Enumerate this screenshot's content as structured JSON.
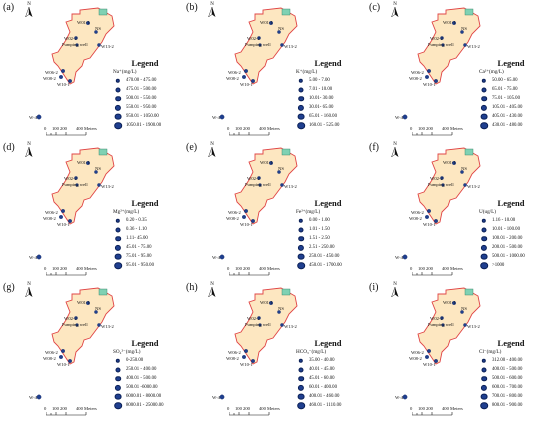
{
  "map_labels": {
    "w01": "W01-1",
    "ns": "NS",
    "w02": "W02-2",
    "pumping": "Pumping well",
    "w13": "W13-2",
    "w06": "W06-2",
    "w08": "W08-2",
    "w10": "W10-1",
    "w4": "W-4"
  },
  "north_label": "N",
  "legend_title": "Legend",
  "scale": {
    "t0": "0",
    "t1": "100 200",
    "t2": "400 Meters"
  },
  "colors": {
    "site_fill": "#fde7c1",
    "site_border": "#e04545",
    "point": "#1f3f8f",
    "ns_fill": "#7fd1b3"
  },
  "panels": [
    {
      "letter": "(a)",
      "param": "Na⁺(mg/L)",
      "items": [
        "470.00 - 475.00",
        "475.01 - 500.00",
        "500.01 - 550.00",
        "550.01 - 950.00",
        "950.01 - 1050.00",
        "1050.01 - 1900.00"
      ]
    },
    {
      "letter": "(b)",
      "param": "K⁺(mg/L)",
      "items": [
        "5.00 - 7.00",
        "7.01 - 10.00",
        "10.01- 30.00",
        "30.01- 65.00",
        "65.01 - 160.00",
        "160.01 - 525.00"
      ]
    },
    {
      "letter": "(c)",
      "param": "Ca²⁺(mg/L)",
      "items": [
        "50.00 - 65.00",
        "65.01 - 75.00",
        "75.01 - 105.00",
        "105.01 - 405.00",
        "405.01 - 430.00",
        "430.01 - 480.00"
      ]
    },
    {
      "letter": "(d)",
      "param": "Mg²⁺(mg/L)",
      "items": [
        "0.20 - 0.35",
        "0.36 - 1.10",
        "1.11- 45.00",
        "45.01 - 75.00",
        "75.01 - 95.00",
        "95.01 - 950.00"
      ]
    },
    {
      "letter": "(e)",
      "param": "Fe²⁺(mg/L)",
      "items": [
        "0.00 - 1.00",
        "1.01 - 1.50",
        "1.51 - 2.50",
        "2.51 - 250.00",
        "250.01 - 450.00",
        "450.01 - 1700.00"
      ]
    },
    {
      "letter": "(f)",
      "param": "U(ug/L)",
      "items": [
        "1.16 - 10.00",
        "10.01 - 100.00",
        "100.01 - 200.00",
        "200.01 - 500.00",
        "500.01 - 1000.00",
        ">1000"
      ]
    },
    {
      "letter": "(g)",
      "param": "SO₄²⁻(mg/L)",
      "items": [
        "0-250.00",
        "250.01 - 400.00",
        "400.01 - 500.00",
        "500.01 -6000.00",
        "6000.01 - 8000.00",
        "8000.01 - 25000.00"
      ]
    },
    {
      "letter": "(h)",
      "param": "HCO₃⁻(mg/L)",
      "items": [
        "35.00 - 40.00",
        "40.01 - 45.00",
        "45.01 - 60.00",
        "60.01 - 400.00",
        "400.01 - 460.00",
        "460.01 - 1110.00"
      ]
    },
    {
      "letter": "(i)",
      "param": "Cl⁻(mg/L)",
      "items": [
        "312.00 - 400.00",
        "400.01 - 500.00",
        "500.01 - 600.00",
        "600.01 - 700.00",
        "700.01 - 800.00",
        "800.01 - 900.00"
      ]
    }
  ]
}
